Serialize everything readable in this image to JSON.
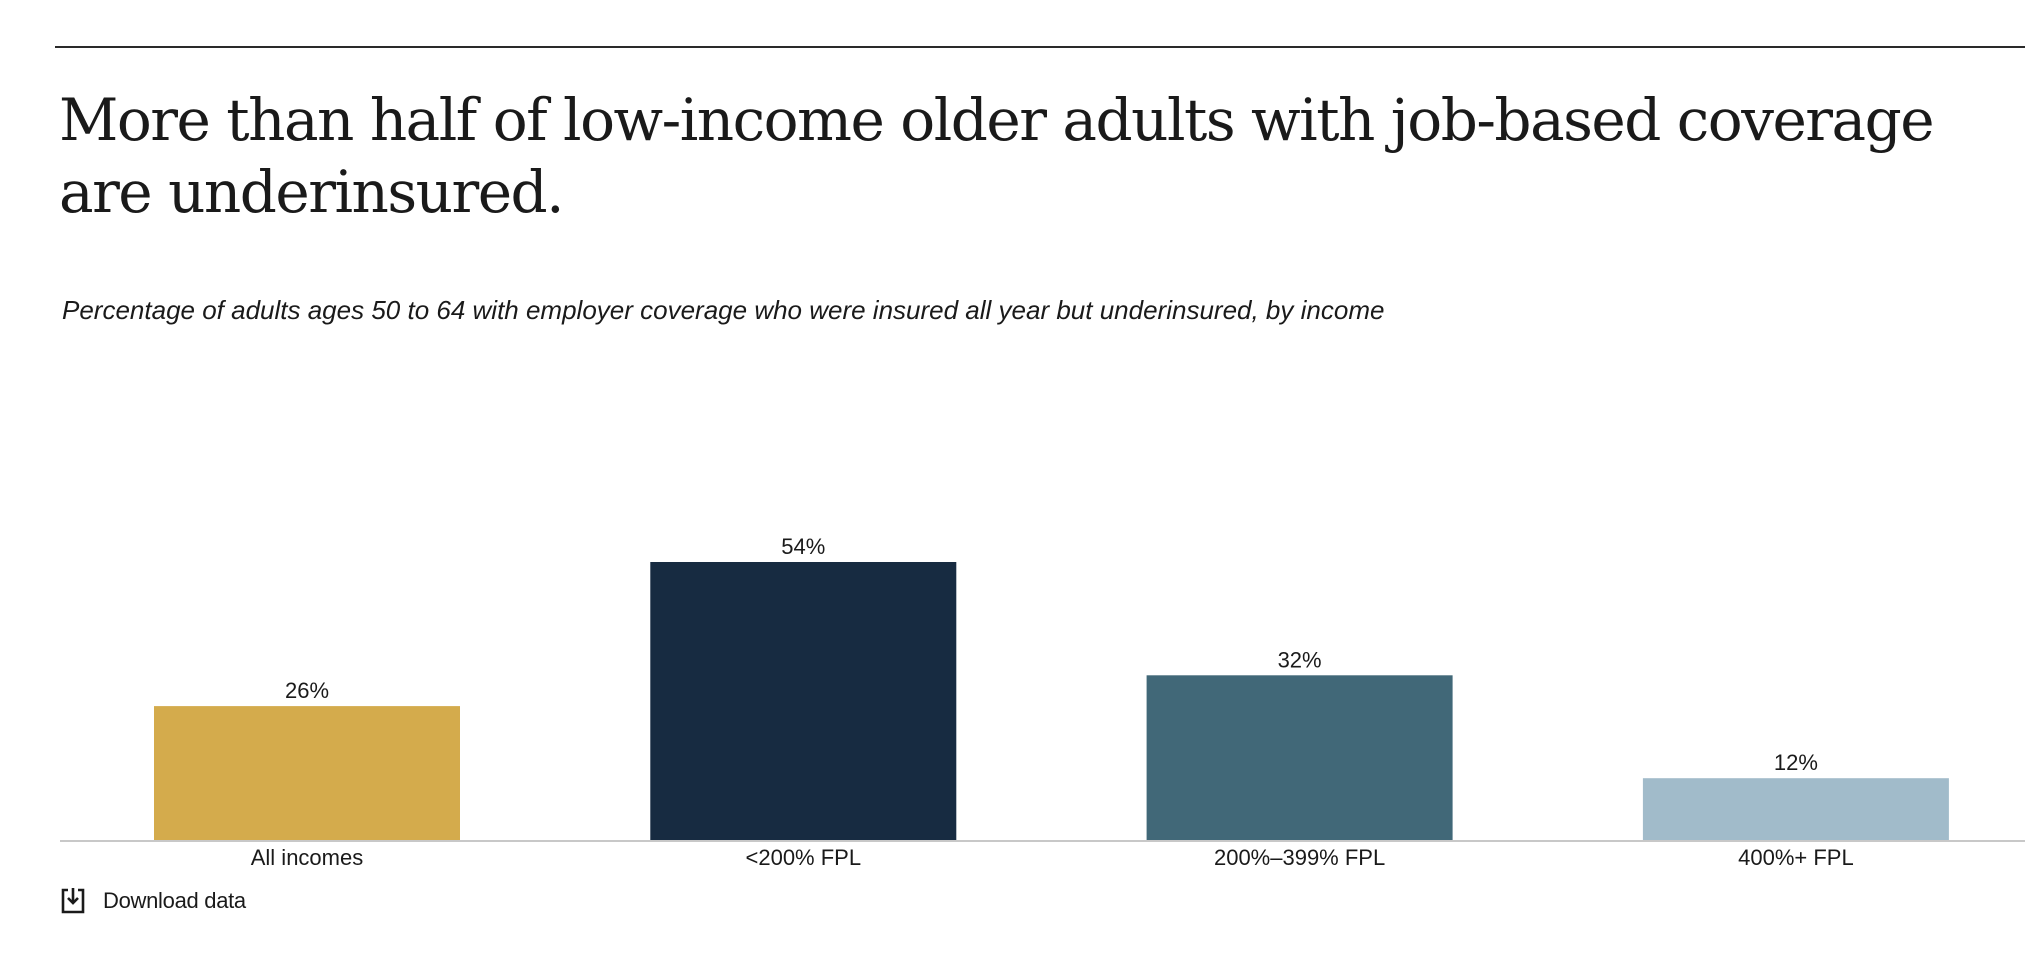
{
  "header": {
    "title": "More than half of low-income older adults with job-based coverage are underinsured.",
    "subtitle": "Percentage of adults ages 50 to 64 with employer coverage who were insured all year but underinsured, by income"
  },
  "chart_data": {
    "type": "bar",
    "title": "More than half of low-income older adults with job-based coverage are underinsured.",
    "subtitle": "Percentage of adults ages 50 to 64 with employer coverage who were insured all year but underinsured, by income",
    "categories": [
      "All incomes",
      "<200% FPL",
      "200%–399% FPL",
      "400%+ FPL"
    ],
    "values": [
      26,
      54,
      32,
      12
    ],
    "value_labels": [
      "26%",
      "54%",
      "32%",
      "12%"
    ],
    "colors": [
      "#d4ab4c",
      "#172b41",
      "#416878",
      "#a1bbca"
    ],
    "ylim": [
      0,
      60
    ],
    "grid": false,
    "legend": "none",
    "xlabel": "",
    "ylabel": ""
  },
  "actions": {
    "download_label": "Download data",
    "download_icon": "download-icon"
  }
}
